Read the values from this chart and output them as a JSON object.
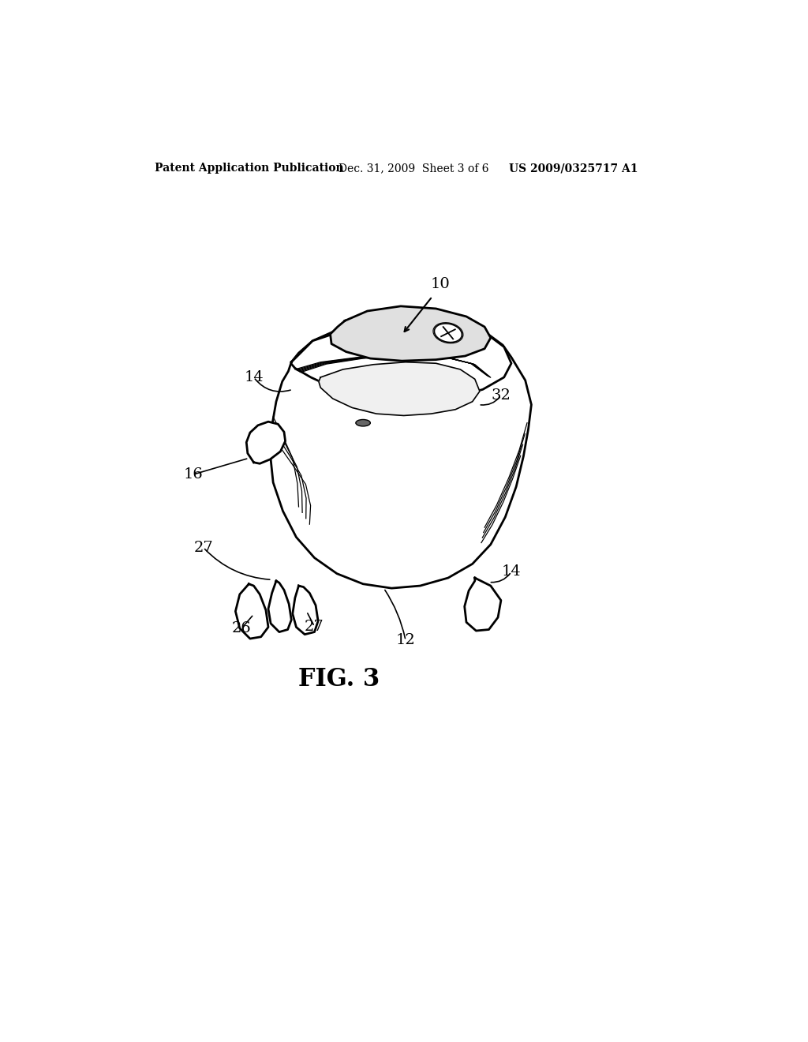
{
  "bg_color": "#ffffff",
  "line_color": "#000000",
  "header_left": "Patent Application Publication",
  "header_mid": "Dec. 31, 2009  Sheet 3 of 6",
  "header_right": "US 2009/0325717 A1",
  "fig_label": "FIG. 3",
  "lw_main": 2.0,
  "lw_thin": 1.2
}
